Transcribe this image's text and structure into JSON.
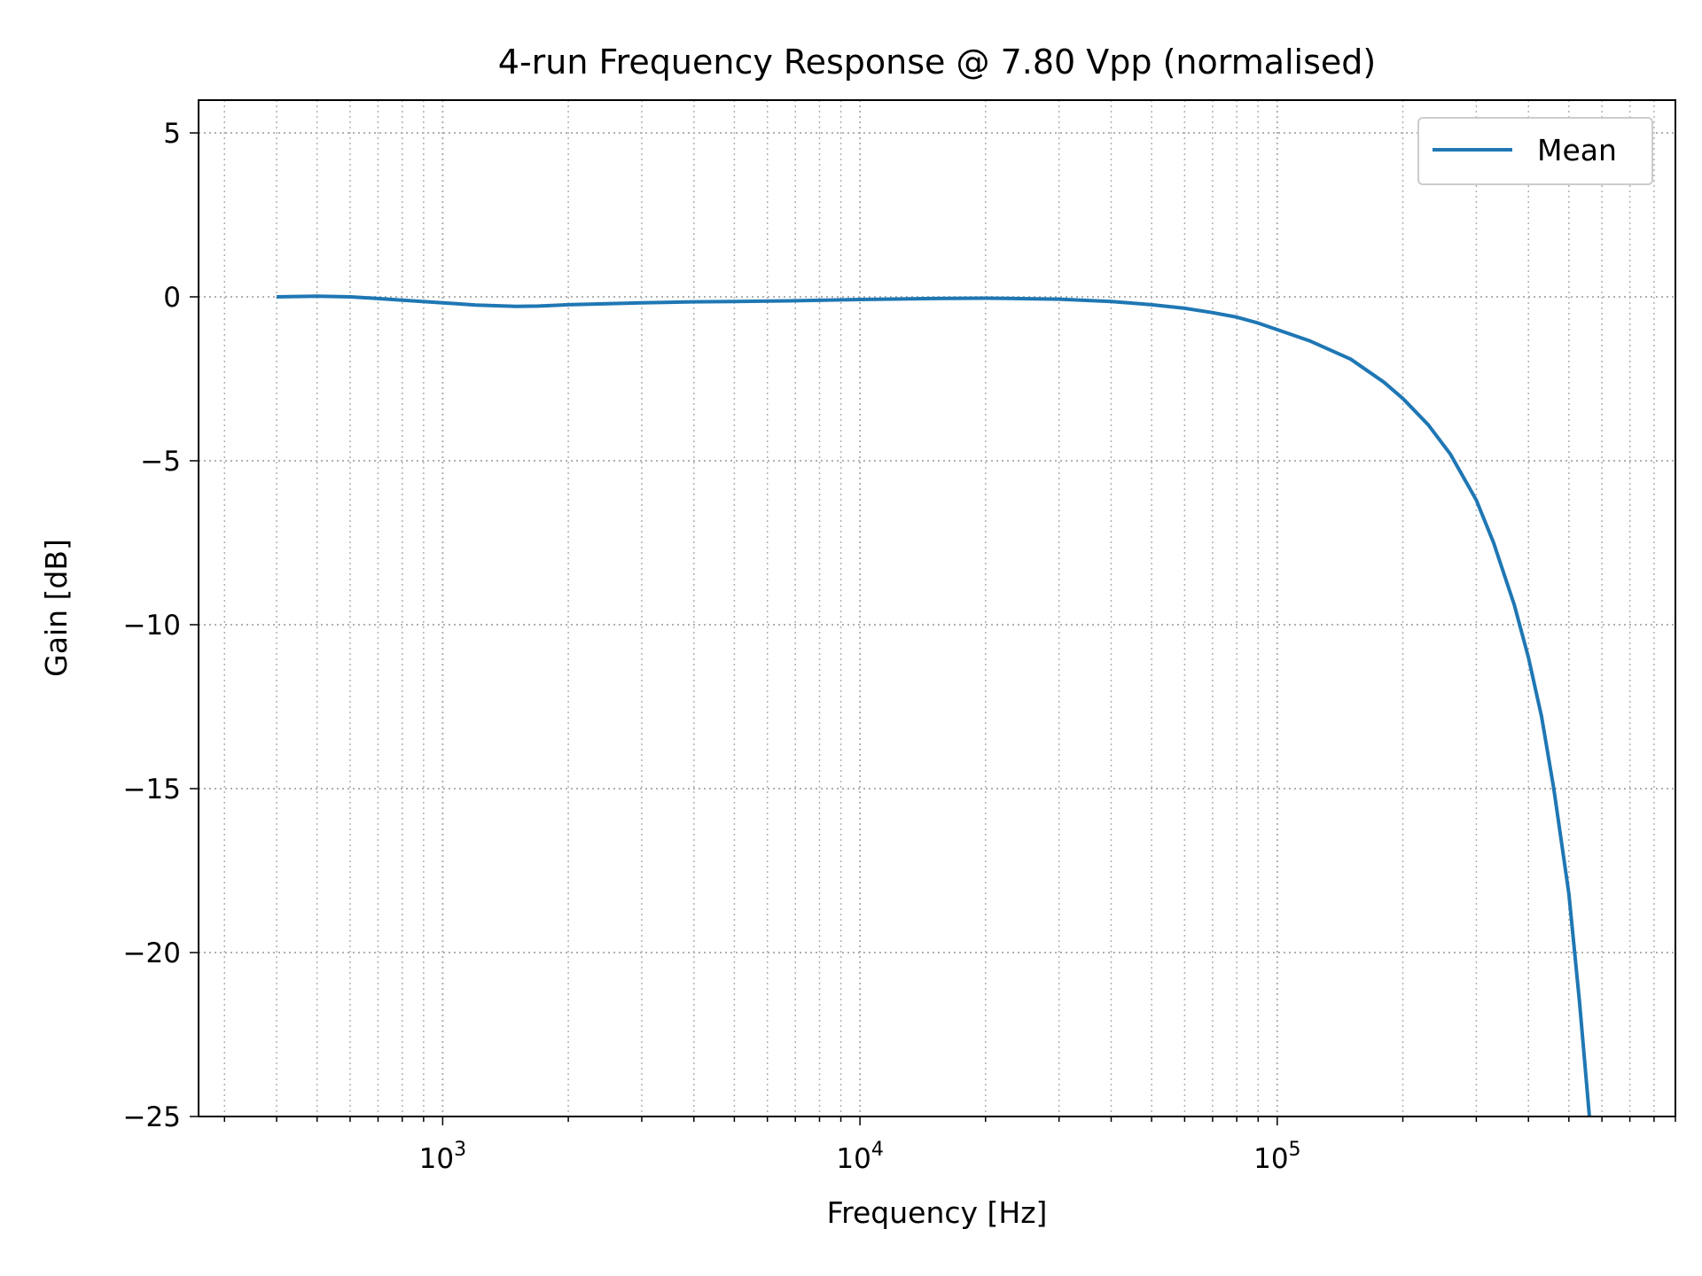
{
  "chart_data": {
    "type": "line",
    "title": "4-run Frequency Response  @ 7.80 Vpp (normalised)",
    "xlabel": "Frequency [Hz]",
    "ylabel": "Gain [dB]",
    "x_scale": "log",
    "xlim": [
      260,
      900000
    ],
    "ylim": [
      -25,
      6
    ],
    "x_ticks": [
      {
        "value": 1000,
        "base": "10",
        "exp": "3"
      },
      {
        "value": 10000,
        "base": "10",
        "exp": "4"
      },
      {
        "value": 100000,
        "base": "10",
        "exp": "5"
      }
    ],
    "y_ticks": [
      {
        "value": 5,
        "label": "5"
      },
      {
        "value": 0,
        "label": "0"
      },
      {
        "value": -5,
        "label": "−5"
      },
      {
        "value": -10,
        "label": "−10"
      },
      {
        "value": -15,
        "label": "−15"
      },
      {
        "value": -20,
        "label": "−20"
      },
      {
        "value": -25,
        "label": "−25"
      }
    ],
    "grid": true,
    "grid_style": "dotted, major and minor",
    "legend": {
      "placement": "top-right"
    },
    "series": [
      {
        "name": "Mean",
        "color": "#1f77b4",
        "points": [
          [
            400,
            0.0
          ],
          [
            500,
            0.02
          ],
          [
            600,
            0.0
          ],
          [
            700,
            -0.05
          ],
          [
            800,
            -0.1
          ],
          [
            1000,
            -0.18
          ],
          [
            1200,
            -0.25
          ],
          [
            1500,
            -0.29
          ],
          [
            1700,
            -0.28
          ],
          [
            2000,
            -0.24
          ],
          [
            3000,
            -0.18
          ],
          [
            4000,
            -0.15
          ],
          [
            5000,
            -0.14
          ],
          [
            7000,
            -0.12
          ],
          [
            10000,
            -0.08
          ],
          [
            15000,
            -0.05
          ],
          [
            20000,
            -0.04
          ],
          [
            30000,
            -0.07
          ],
          [
            40000,
            -0.14
          ],
          [
            50000,
            -0.24
          ],
          [
            60000,
            -0.35
          ],
          [
            70000,
            -0.48
          ],
          [
            80000,
            -0.62
          ],
          [
            90000,
            -0.8
          ],
          [
            100000,
            -1.0
          ],
          [
            120000,
            -1.35
          ],
          [
            150000,
            -1.9
          ],
          [
            180000,
            -2.6
          ],
          [
            200000,
            -3.1
          ],
          [
            230000,
            -3.9
          ],
          [
            260000,
            -4.8
          ],
          [
            300000,
            -6.2
          ],
          [
            330000,
            -7.5
          ],
          [
            370000,
            -9.4
          ],
          [
            400000,
            -11.0
          ],
          [
            430000,
            -12.8
          ],
          [
            460000,
            -15.0
          ],
          [
            500000,
            -18.2
          ],
          [
            530000,
            -21.5
          ],
          [
            560000,
            -25.0
          ]
        ]
      }
    ]
  }
}
